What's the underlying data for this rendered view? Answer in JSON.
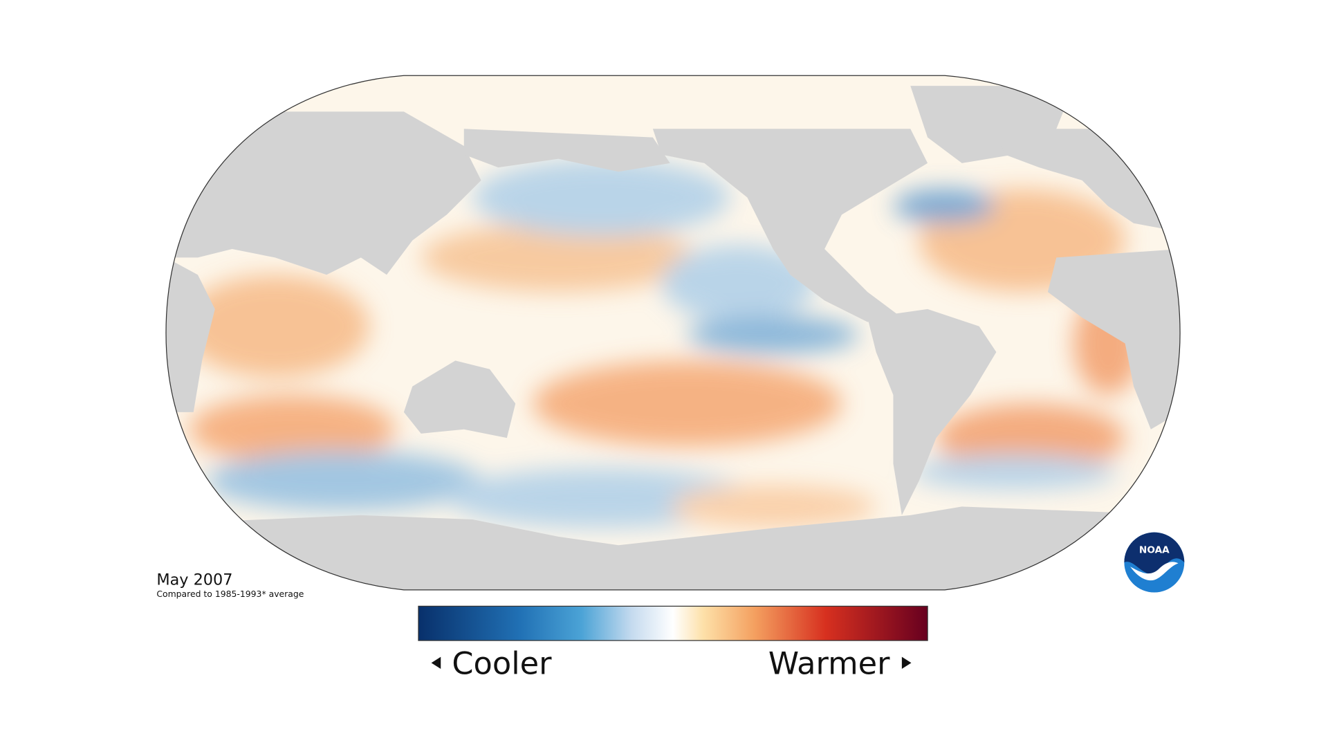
{
  "caption": {
    "date": "May 2007",
    "baseline": "Compared to 1985-1993* average"
  },
  "legend": {
    "low_label": "Cooler",
    "high_label": "Warmer"
  },
  "logo": {
    "text": "NOAA"
  }
}
